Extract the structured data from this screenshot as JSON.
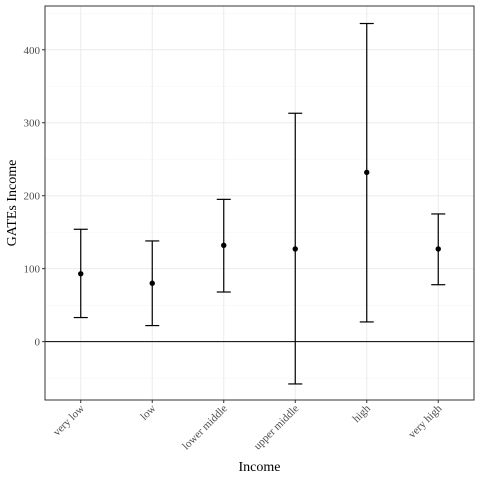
{
  "chart_data": {
    "type": "errorbar",
    "title": "",
    "xlabel": "Income",
    "ylabel": "GATEs Income",
    "categories": [
      "very low",
      "low",
      "lower middle",
      "upper middle",
      "high",
      "very high"
    ],
    "series": [
      {
        "estimate": [
          93,
          80,
          132,
          127,
          232,
          127
        ],
        "lower": [
          33,
          22,
          68,
          -58,
          27,
          78
        ],
        "upper": [
          154,
          138,
          195,
          313,
          436,
          175
        ]
      }
    ],
    "ylim": [
      -80,
      460
    ],
    "yticks": [
      0,
      100,
      200,
      300,
      400
    ],
    "reference_line": 0,
    "grid": true,
    "colors": {
      "grid_major": "#ebebeb",
      "grid_minor": "#f5f5f5",
      "panel_border": "#333333",
      "marks": "#000000"
    }
  }
}
